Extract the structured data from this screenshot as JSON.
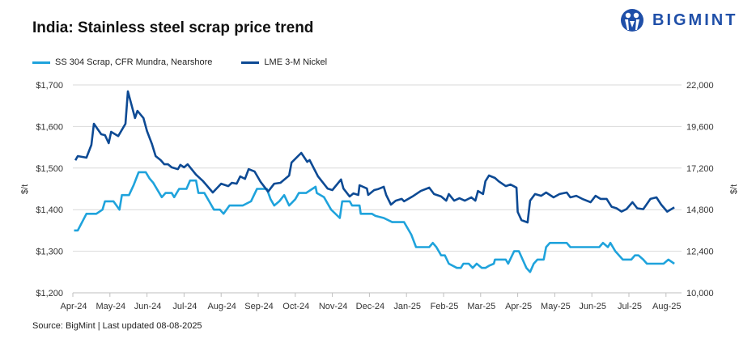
{
  "title": "India: Stainless steel scrap price trend",
  "logo": {
    "text": "BIGMINT",
    "color": "#1f4fa8"
  },
  "source": "Source: BigMint | Last updated 08-08-2025",
  "chart_data": {
    "type": "line",
    "title": "India: Stainless steel scrap price trend",
    "ylabel": "$/t",
    "y2label": "$/t",
    "ylim": [
      1200,
      1700
    ],
    "y2lim": [
      10000,
      22000
    ],
    "yticks": [
      "$1,200",
      "$1,300",
      "$1,400",
      "$1,500",
      "$1,600",
      "$1,700"
    ],
    "y2ticks": [
      "10,000",
      "12,400",
      "14,800",
      "17,200",
      "19,600",
      "22,000"
    ],
    "xticks": [
      "Apr-24",
      "May-24",
      "Jun-24",
      "Jul-24",
      "Aug-24",
      "Sep-24",
      "Oct-24",
      "Nov-24",
      "Dec-24",
      "Jan-25",
      "Feb-25",
      "Mar-25",
      "Apr-25",
      "May-25",
      "Jun-25",
      "Jul-25",
      "Aug-25"
    ],
    "grid": true,
    "legend_placement": "top-left",
    "series": [
      {
        "name": "SS 304 Scrap, CFR Mundra, Nearshore",
        "axis": "left",
        "color": "#1fa3dc",
        "points": [
          [
            "2024-04-02",
            1350
          ],
          [
            "2024-04-05",
            1350
          ],
          [
            "2024-04-12",
            1390
          ],
          [
            "2024-04-20",
            1390
          ],
          [
            "2024-04-25",
            1400
          ],
          [
            "2024-04-27",
            1420
          ],
          [
            "2024-05-04",
            1420
          ],
          [
            "2024-05-09",
            1400
          ],
          [
            "2024-05-11",
            1435
          ],
          [
            "2024-05-17",
            1435
          ],
          [
            "2024-05-21",
            1460
          ],
          [
            "2024-05-25",
            1490
          ],
          [
            "2024-05-31",
            1490
          ],
          [
            "2024-06-03",
            1475
          ],
          [
            "2024-06-06",
            1465
          ],
          [
            "2024-06-13",
            1430
          ],
          [
            "2024-06-16",
            1440
          ],
          [
            "2024-06-21",
            1440
          ],
          [
            "2024-06-23",
            1430
          ],
          [
            "2024-06-27",
            1450
          ],
          [
            "2024-07-03",
            1450
          ],
          [
            "2024-07-06",
            1470
          ],
          [
            "2024-07-11",
            1470
          ],
          [
            "2024-07-13",
            1440
          ],
          [
            "2024-07-18",
            1440
          ],
          [
            "2024-07-22",
            1420
          ],
          [
            "2024-07-26",
            1400
          ],
          [
            "2024-07-31",
            1400
          ],
          [
            "2024-08-03",
            1390
          ],
          [
            "2024-08-08",
            1410
          ],
          [
            "2024-08-19",
            1410
          ],
          [
            "2024-08-26",
            1420
          ],
          [
            "2024-08-31",
            1450
          ],
          [
            "2024-09-08",
            1450
          ],
          [
            "2024-09-11",
            1425
          ],
          [
            "2024-09-14",
            1410
          ],
          [
            "2024-09-18",
            1420
          ],
          [
            "2024-09-22",
            1435
          ],
          [
            "2024-09-26",
            1410
          ],
          [
            "2024-10-01",
            1425
          ],
          [
            "2024-10-04",
            1440
          ],
          [
            "2024-10-10",
            1440
          ],
          [
            "2024-10-18",
            1455
          ],
          [
            "2024-10-19",
            1440
          ],
          [
            "2024-10-25",
            1430
          ],
          [
            "2024-10-31",
            1400
          ],
          [
            "2024-11-07",
            1380
          ],
          [
            "2024-11-09",
            1420
          ],
          [
            "2024-11-15",
            1420
          ],
          [
            "2024-11-17",
            1410
          ],
          [
            "2024-11-23",
            1410
          ],
          [
            "2024-11-24",
            1390
          ],
          [
            "2024-12-03",
            1390
          ],
          [
            "2024-12-06",
            1385
          ],
          [
            "2024-12-13",
            1380
          ],
          [
            "2024-12-20",
            1370
          ],
          [
            "2024-12-30",
            1370
          ],
          [
            "2025-01-05",
            1340
          ],
          [
            "2025-01-09",
            1310
          ],
          [
            "2025-01-20",
            1310
          ],
          [
            "2025-01-23",
            1320
          ],
          [
            "2025-01-26",
            1310
          ],
          [
            "2025-01-30",
            1290
          ],
          [
            "2025-02-02",
            1290
          ],
          [
            "2025-02-05",
            1270
          ],
          [
            "2025-02-11",
            1260
          ],
          [
            "2025-02-14",
            1260
          ],
          [
            "2025-02-16",
            1270
          ],
          [
            "2025-02-20",
            1270
          ],
          [
            "2025-02-23",
            1260
          ],
          [
            "2025-02-26",
            1270
          ],
          [
            "2025-03-02",
            1260
          ],
          [
            "2025-03-05",
            1260
          ],
          [
            "2025-03-08",
            1265
          ],
          [
            "2025-03-12",
            1270
          ],
          [
            "2025-03-13",
            1280
          ],
          [
            "2025-03-22",
            1280
          ],
          [
            "2025-03-24",
            1270
          ],
          [
            "2025-03-29",
            1300
          ],
          [
            "2025-04-02",
            1300
          ],
          [
            "2025-04-05",
            1280
          ],
          [
            "2025-04-08",
            1260
          ],
          [
            "2025-04-11",
            1250
          ],
          [
            "2025-04-14",
            1270
          ],
          [
            "2025-04-17",
            1280
          ],
          [
            "2025-04-22",
            1280
          ],
          [
            "2025-04-24",
            1310
          ],
          [
            "2025-04-27",
            1320
          ],
          [
            "2025-05-11",
            1320
          ],
          [
            "2025-05-14",
            1310
          ],
          [
            "2025-06-07",
            1310
          ],
          [
            "2025-06-10",
            1320
          ],
          [
            "2025-06-14",
            1310
          ],
          [
            "2025-06-16",
            1320
          ],
          [
            "2025-06-20",
            1300
          ],
          [
            "2025-06-23",
            1290
          ],
          [
            "2025-06-26",
            1280
          ],
          [
            "2025-07-03",
            1280
          ],
          [
            "2025-07-06",
            1290
          ],
          [
            "2025-07-09",
            1290
          ],
          [
            "2025-07-13",
            1280
          ],
          [
            "2025-07-16",
            1270
          ],
          [
            "2025-07-30",
            1270
          ],
          [
            "2025-08-03",
            1280
          ],
          [
            "2025-08-08",
            1270
          ]
        ]
      },
      {
        "name": "LME 3-M Nickel",
        "axis": "right",
        "color": "#0d4a94",
        "points": [
          [
            "2024-04-03",
            17650
          ],
          [
            "2024-04-05",
            17890
          ],
          [
            "2024-04-12",
            17800
          ],
          [
            "2024-04-16",
            18540
          ],
          [
            "2024-04-18",
            19760
          ],
          [
            "2024-04-24",
            19150
          ],
          [
            "2024-04-27",
            19100
          ],
          [
            "2024-04-30",
            18640
          ],
          [
            "2024-05-02",
            19290
          ],
          [
            "2024-05-08",
            19050
          ],
          [
            "2024-05-14",
            19760
          ],
          [
            "2024-05-16",
            21630
          ],
          [
            "2024-05-22",
            20090
          ],
          [
            "2024-05-24",
            20500
          ],
          [
            "2024-05-29",
            20090
          ],
          [
            "2024-06-01",
            19340
          ],
          [
            "2024-06-05",
            18590
          ],
          [
            "2024-06-08",
            17890
          ],
          [
            "2024-06-12",
            17660
          ],
          [
            "2024-06-15",
            17420
          ],
          [
            "2024-06-18",
            17420
          ],
          [
            "2024-06-21",
            17240
          ],
          [
            "2024-06-26",
            17140
          ],
          [
            "2024-06-28",
            17380
          ],
          [
            "2024-07-01",
            17240
          ],
          [
            "2024-07-04",
            17420
          ],
          [
            "2024-07-11",
            16820
          ],
          [
            "2024-07-17",
            16440
          ],
          [
            "2024-07-25",
            15790
          ],
          [
            "2024-08-01",
            16300
          ],
          [
            "2024-08-07",
            16160
          ],
          [
            "2024-08-10",
            16350
          ],
          [
            "2024-08-14",
            16300
          ],
          [
            "2024-08-17",
            16720
          ],
          [
            "2024-08-21",
            16580
          ],
          [
            "2024-08-24",
            17140
          ],
          [
            "2024-08-29",
            17000
          ],
          [
            "2024-09-03",
            16390
          ],
          [
            "2024-09-09",
            15840
          ],
          [
            "2024-09-14",
            16300
          ],
          [
            "2024-09-19",
            16350
          ],
          [
            "2024-09-26",
            16770
          ],
          [
            "2024-09-28",
            17520
          ],
          [
            "2024-10-06",
            18080
          ],
          [
            "2024-10-11",
            17560
          ],
          [
            "2024-10-13",
            17660
          ],
          [
            "2024-10-20",
            16720
          ],
          [
            "2024-10-28",
            16020
          ],
          [
            "2024-11-01",
            15930
          ],
          [
            "2024-11-08",
            16540
          ],
          [
            "2024-11-10",
            16020
          ],
          [
            "2024-11-15",
            15560
          ],
          [
            "2024-11-18",
            15740
          ],
          [
            "2024-11-22",
            15650
          ],
          [
            "2024-11-23",
            16210
          ],
          [
            "2024-11-29",
            16020
          ],
          [
            "2024-11-30",
            15650
          ],
          [
            "2024-12-05",
            15930
          ],
          [
            "2024-12-08",
            15980
          ],
          [
            "2024-12-13",
            16120
          ],
          [
            "2024-12-15",
            15650
          ],
          [
            "2024-12-19",
            15090
          ],
          [
            "2024-12-23",
            15320
          ],
          [
            "2024-12-28",
            15420
          ],
          [
            "2024-12-30",
            15280
          ],
          [
            "2025-01-06",
            15560
          ],
          [
            "2025-01-13",
            15880
          ],
          [
            "2025-01-20",
            16070
          ],
          [
            "2025-01-24",
            15700
          ],
          [
            "2025-01-30",
            15560
          ],
          [
            "2025-02-03",
            15320
          ],
          [
            "2025-02-05",
            15700
          ],
          [
            "2025-02-09",
            15320
          ],
          [
            "2025-02-13",
            15460
          ],
          [
            "2025-02-17",
            15320
          ],
          [
            "2025-02-22",
            15510
          ],
          [
            "2025-02-25",
            15320
          ],
          [
            "2025-02-27",
            15880
          ],
          [
            "2025-03-03",
            15700
          ],
          [
            "2025-03-05",
            16440
          ],
          [
            "2025-03-08",
            16770
          ],
          [
            "2025-03-13",
            16630
          ],
          [
            "2025-03-16",
            16440
          ],
          [
            "2025-03-22",
            16160
          ],
          [
            "2025-03-26",
            16250
          ],
          [
            "2025-03-31",
            16070
          ],
          [
            "2025-04-01",
            14670
          ],
          [
            "2025-04-04",
            14200
          ],
          [
            "2025-04-09",
            14060
          ],
          [
            "2025-04-11",
            15320
          ],
          [
            "2025-04-15",
            15700
          ],
          [
            "2025-04-20",
            15600
          ],
          [
            "2025-04-24",
            15790
          ],
          [
            "2025-04-30",
            15510
          ],
          [
            "2025-05-05",
            15700
          ],
          [
            "2025-05-11",
            15790
          ],
          [
            "2025-05-14",
            15510
          ],
          [
            "2025-05-19",
            15600
          ],
          [
            "2025-05-24",
            15420
          ],
          [
            "2025-05-31",
            15230
          ],
          [
            "2025-06-04",
            15600
          ],
          [
            "2025-06-08",
            15420
          ],
          [
            "2025-06-13",
            15420
          ],
          [
            "2025-06-17",
            14970
          ],
          [
            "2025-06-21",
            14880
          ],
          [
            "2025-06-25",
            14690
          ],
          [
            "2025-06-29",
            14830
          ],
          [
            "2025-07-04",
            15230
          ],
          [
            "2025-07-08",
            14880
          ],
          [
            "2025-07-13",
            14830
          ],
          [
            "2025-07-19",
            15420
          ],
          [
            "2025-07-24",
            15510
          ],
          [
            "2025-07-28",
            15090
          ],
          [
            "2025-08-02",
            14690
          ],
          [
            "2025-08-08",
            14930
          ]
        ]
      }
    ]
  }
}
